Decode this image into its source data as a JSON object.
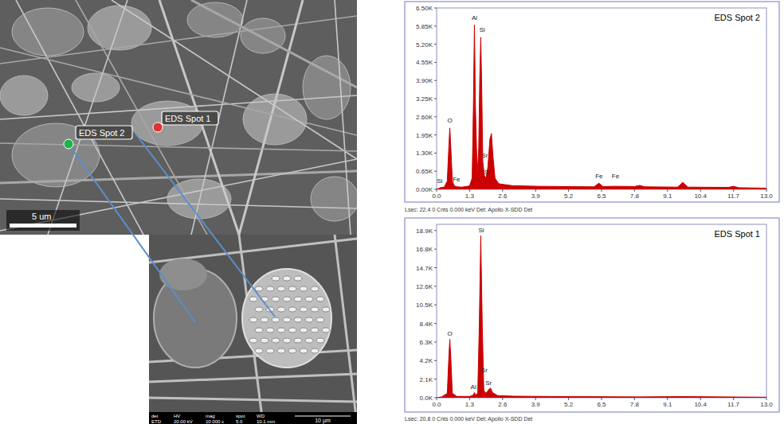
{
  "chart_data": [
    {
      "type": "area",
      "title": "EDS Spot 2",
      "color": "#cc0000",
      "footer": "Lsec: 22.4 0 Cnts 0.000 keV Det: Apollo X-SDD Det",
      "x": [
        0,
        0.15,
        0.3,
        0.42,
        0.48,
        0.52,
        0.56,
        0.62,
        0.7,
        0.8,
        1.0,
        1.3,
        1.4,
        1.45,
        1.49,
        1.53,
        1.6,
        1.66,
        1.7,
        1.74,
        1.78,
        1.82,
        1.88,
        1.95,
        2.02,
        2.1,
        2.16,
        2.22,
        2.3,
        2.45,
        3,
        4,
        5,
        6.2,
        6.4,
        6.55,
        7.0,
        7.8,
        8.0,
        8.2,
        9.5,
        9.7,
        9.9,
        11.5,
        11.7,
        11.9,
        13
      ],
      "values": [
        0,
        60,
        80,
        300,
        1500,
        2200,
        1500,
        300,
        120,
        90,
        80,
        120,
        400,
        3000,
        5900,
        3000,
        500,
        1500,
        4000,
        5450,
        3500,
        1000,
        500,
        400,
        800,
        1800,
        2000,
        1200,
        400,
        200,
        130,
        110,
        100,
        90,
        220,
        100,
        110,
        100,
        140,
        90,
        80,
        250,
        80,
        70,
        110,
        60,
        40
      ],
      "xlim": [
        0,
        13.0
      ],
      "xticks": [
        {
          "value": 0,
          "label": "0.0"
        },
        1.3,
        2.6,
        3.9,
        5.2,
        6.5,
        7.8,
        9.1,
        10.4,
        11.7,
        {
          "value": 13,
          "label": "13.0"
        }
      ],
      "ylim": [
        0,
        6500
      ],
      "yticks": [
        {
          "value": 0,
          "label": "0.00K"
        },
        {
          "value": 650,
          "label": "0.65K"
        },
        {
          "value": 1300,
          "label": "1.30K"
        },
        {
          "value": 1950,
          "label": "1.95K"
        },
        {
          "value": 2600,
          "label": "2.60K"
        },
        {
          "value": 3250,
          "label": "3.25K"
        },
        {
          "value": 3900,
          "label": "3.90K"
        },
        {
          "value": 4550,
          "label": "4.55K"
        },
        {
          "value": 5200,
          "label": "5.20K"
        },
        {
          "value": 5850,
          "label": "5.85K"
        },
        {
          "value": 6500,
          "label": "6.50K"
        }
      ],
      "annotations": [
        {
          "text": "Si",
          "x": 0.12,
          "y": 150
        },
        {
          "text": "Fe",
          "x": 0.78,
          "y": 200
        },
        {
          "text": "O",
          "x": 0.52,
          "y": 2300
        },
        {
          "text": "Al",
          "x": 1.49,
          "y": 6000
        },
        {
          "text": "Si",
          "x": 1.8,
          "y": 5550
        },
        {
          "text": "Sr",
          "x": 1.9,
          "y": 1050
        },
        {
          "text": "Sr",
          "x": 2.0,
          "y": 450
        },
        {
          "text": "Fe",
          "x": 6.4,
          "y": 300
        },
        {
          "text": "Fe",
          "x": 7.05,
          "y": 300
        }
      ]
    },
    {
      "type": "area",
      "title": "EDS Spot 1",
      "color": "#cc0000",
      "footer": "Lsec: 20.8 0 Cnts 0.000 keV Det: Apollo X-SDD Det",
      "x": [
        0,
        0.2,
        0.42,
        0.48,
        0.52,
        0.56,
        0.62,
        0.8,
        1.3,
        1.45,
        1.49,
        1.53,
        1.62,
        1.68,
        1.74,
        1.8,
        1.86,
        1.95,
        2.05,
        2.12,
        2.2,
        2.4,
        3,
        5,
        8,
        9.7,
        13
      ],
      "values": [
        0,
        100,
        500,
        4500,
        6600,
        4500,
        500,
        150,
        150,
        300,
        600,
        300,
        500,
        8000,
        18300,
        8000,
        800,
        500,
        900,
        1100,
        600,
        250,
        180,
        130,
        100,
        130,
        60
      ],
      "xlim": [
        0,
        13.0
      ],
      "xticks": [
        {
          "value": 0,
          "label": "0.0"
        },
        1.3,
        2.6,
        3.9,
        5.2,
        6.5,
        7.8,
        9.1,
        10.4,
        11.7,
        {
          "value": 13,
          "label": "13.0"
        }
      ],
      "ylim": [
        0,
        19600
      ],
      "yticks": [
        {
          "value": 0,
          "label": "0.0K"
        },
        {
          "value": 2100,
          "label": "2.1K"
        },
        {
          "value": 4200,
          "label": "4.2K"
        },
        {
          "value": 6300,
          "label": "6.3K"
        },
        {
          "value": 8400,
          "label": "8.4K"
        },
        {
          "value": 10500,
          "label": "10.5K"
        },
        {
          "value": 12600,
          "label": "12.6K"
        },
        {
          "value": 14700,
          "label": "14.7K"
        },
        {
          "value": 16800,
          "label": "16.8K"
        },
        {
          "value": 18900,
          "label": "18.9K"
        }
      ],
      "annotations": [
        {
          "text": "O",
          "x": 0.52,
          "y": 6700
        },
        {
          "text": "Si",
          "x": 1.76,
          "y": 18400
        },
        {
          "text": "Al",
          "x": 1.45,
          "y": 700
        },
        {
          "text": "Sr",
          "x": 1.88,
          "y": 2600
        },
        {
          "text": "Sr",
          "x": 2.05,
          "y": 1200
        }
      ]
    }
  ],
  "micrograph": {
    "spots": [
      {
        "label": "EDS Spot 2",
        "color": "#22b14c"
      },
      {
        "label": "EDS Spot 1",
        "color": "#e03030"
      }
    ],
    "scale_bar": "5 um",
    "inset": {
      "headers": [
        "det",
        "HV",
        "mag",
        "spot",
        "WD"
      ],
      "values": [
        "ETD",
        "20.00 kV",
        "10 000 x",
        "5.0",
        "10.1 mm"
      ],
      "scale_bar": "10 µm"
    }
  }
}
